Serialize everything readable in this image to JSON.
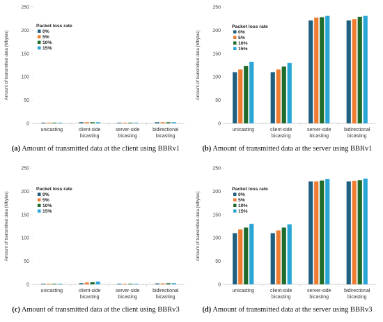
{
  "chart_data": [
    {
      "type": "bar",
      "caption_letter": "(a)",
      "caption_text": "Amount of transmitted data at the client using BBRv1",
      "ylabel": "Amount of transmitted data (Mbytes)",
      "ylim": [
        0,
        250
      ],
      "yticks": [
        "0",
        "50",
        "100",
        "150",
        "200",
        "250"
      ],
      "categories": [
        [
          "unicasting"
        ],
        [
          "client-side",
          "bicasting"
        ],
        [
          "server-side",
          "bicasting"
        ],
        [
          "bidirectional",
          "bicasting"
        ]
      ],
      "legend_title": "Packet loss rate",
      "legend_position": "top-left",
      "grid": false,
      "series": [
        {
          "name": "0%",
          "color": "#1f5f7f",
          "values": [
            1.5,
            2.5,
            1.5,
            2.5
          ]
        },
        {
          "name": "5%",
          "color": "#ed7d31",
          "values": [
            1.5,
            2.5,
            1.5,
            2.5
          ]
        },
        {
          "name": "10%",
          "color": "#1f6b2b",
          "values": [
            1.5,
            2.5,
            1.5,
            2.5
          ]
        },
        {
          "name": "15%",
          "color": "#2aa6d6",
          "values": [
            1.5,
            2.5,
            1.5,
            2.5
          ]
        }
      ]
    },
    {
      "type": "bar",
      "caption_letter": "(b)",
      "caption_text": "Amount of transmitted data at the server using BBRv1",
      "ylabel": "Amount of transmitted data (Mbytes)",
      "ylim": [
        0,
        250
      ],
      "yticks": [
        "0",
        "50",
        "100",
        "150",
        "200",
        "250"
      ],
      "categories": [
        [
          "unicasting"
        ],
        [
          "client-side",
          "bicasting"
        ],
        [
          "server-side",
          "bicasting"
        ],
        [
          "bidirectional",
          "bicasting"
        ]
      ],
      "legend_title": "Packet loss rate",
      "legend_position": "top-left",
      "grid": false,
      "series": [
        {
          "name": "0%",
          "color": "#1f5f7f",
          "values": [
            110,
            110,
            221,
            221
          ]
        },
        {
          "name": "5%",
          "color": "#ed7d31",
          "values": [
            116,
            116,
            227,
            224
          ]
        },
        {
          "name": "10%",
          "color": "#1f6b2b",
          "values": [
            123,
            122,
            228,
            229
          ]
        },
        {
          "name": "15%",
          "color": "#2aa6d6",
          "values": [
            132,
            130,
            231,
            231
          ]
        }
      ]
    },
    {
      "type": "bar",
      "caption_letter": "(c)",
      "caption_text": "Amount of transmitted data at the client using BBRv3",
      "ylabel": "Amount of transmitted data (Mbytes)",
      "ylim": [
        0,
        250
      ],
      "yticks": [
        "0",
        "50",
        "100",
        "150",
        "200",
        "250"
      ],
      "categories": [
        [
          "unicasting"
        ],
        [
          "client-side",
          "bicasting"
        ],
        [
          "server-side",
          "bicasting"
        ],
        [
          "bidirectional",
          "bicasting"
        ]
      ],
      "legend_title": "Packet loss rate",
      "legend_position": "top-left",
      "grid": false,
      "series": [
        {
          "name": "0%",
          "color": "#1f5f7f",
          "values": [
            1.5,
            2.5,
            1.5,
            2.0
          ]
        },
        {
          "name": "5%",
          "color": "#ed7d31",
          "values": [
            1.5,
            4.0,
            1.5,
            2.0
          ]
        },
        {
          "name": "10%",
          "color": "#1f6b2b",
          "values": [
            1.5,
            4.5,
            1.5,
            2.5
          ]
        },
        {
          "name": "15%",
          "color": "#2aa6d6",
          "values": [
            1.5,
            6.0,
            1.5,
            2.5
          ]
        }
      ]
    },
    {
      "type": "bar",
      "caption_letter": "(d)",
      "caption_text": "Amount of transmitted data at the server using BBRv3",
      "ylabel": "Amount of transmitted data (Mbytes)",
      "ylim": [
        0,
        250
      ],
      "yticks": [
        "0",
        "50",
        "100",
        "150",
        "200",
        "250"
      ],
      "categories": [
        [
          "unicasting"
        ],
        [
          "client-side",
          "bicasting"
        ],
        [
          "server-side",
          "bicasting"
        ],
        [
          "bidirectional",
          "bicasting"
        ]
      ],
      "legend_title": "Packet loss rate",
      "legend_position": "top-left",
      "grid": false,
      "series": [
        {
          "name": "0%",
          "color": "#1f5f7f",
          "values": [
            110,
            110,
            221,
            221
          ]
        },
        {
          "name": "5%",
          "color": "#ed7d31",
          "values": [
            118,
            116,
            221,
            222
          ]
        },
        {
          "name": "10%",
          "color": "#1f6b2b",
          "values": [
            122,
            122,
            223,
            224
          ]
        },
        {
          "name": "15%",
          "color": "#2aa6d6",
          "values": [
            130,
            129,
            226,
            227
          ]
        }
      ]
    }
  ]
}
